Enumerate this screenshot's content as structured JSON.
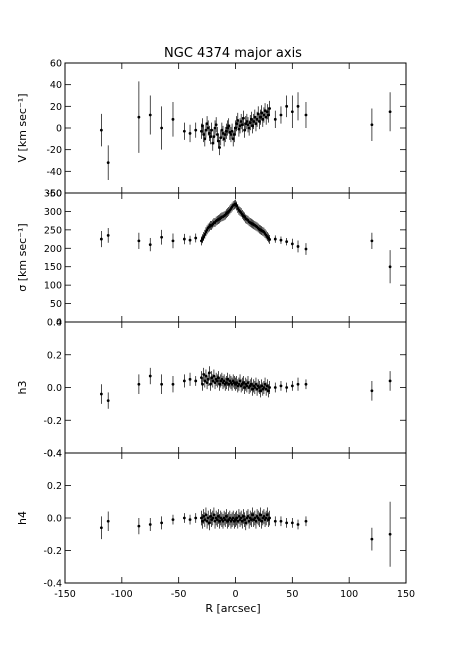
{
  "chart_data": {
    "type": "scatter",
    "title": "NGC 4374 major axis",
    "xlabel": "R [arcsec]",
    "xlim": [
      -150,
      150
    ],
    "xticks": [
      -150,
      -100,
      -50,
      0,
      50,
      100,
      150
    ],
    "panels": [
      {
        "ylabel": "V [km sec⁻¹]",
        "ylim": [
          -60,
          60
        ],
        "yticks": [
          -60,
          -40,
          -20,
          0,
          20,
          40,
          60
        ],
        "inner_x": [
          -30,
          -29,
          -28,
          -27,
          -26,
          -25,
          -24,
          -23,
          -22,
          -21,
          -20,
          -19,
          -18,
          -17,
          -16,
          -15,
          -14,
          -13,
          -12,
          -11,
          -10,
          -9,
          -8,
          -7,
          -6,
          -5,
          -4,
          -3,
          -2,
          -1,
          0,
          1,
          2,
          3,
          4,
          5,
          6,
          7,
          8,
          9,
          10,
          11,
          12,
          13,
          14,
          15,
          16,
          17,
          18,
          19,
          20,
          21,
          22,
          23,
          24,
          25,
          26,
          27,
          28,
          29,
          30
        ],
        "inner_y": [
          -3,
          2,
          -6,
          -10,
          -2,
          4,
          0,
          -5,
          -8,
          -2,
          -14,
          -8,
          0,
          3,
          -6,
          -12,
          -18,
          -9,
          -2,
          -5,
          -10,
          -6,
          -3,
          0,
          2,
          -4,
          -6,
          -3,
          -10,
          -6,
          0,
          4,
          7,
          -1,
          2,
          6,
          3,
          9,
          -2,
          4,
          6,
          3,
          0,
          5,
          8,
          2,
          6,
          10,
          4,
          8,
          13,
          6,
          10,
          14,
          8,
          12,
          16,
          10,
          15,
          12,
          18
        ],
        "inner_err": 7,
        "outer": [
          {
            "x": -118,
            "y": -2,
            "err": 15
          },
          {
            "x": -112,
            "y": -32,
            "err": 16
          },
          {
            "x": -85,
            "y": 10,
            "err": 33
          },
          {
            "x": -75,
            "y": 12,
            "err": 18
          },
          {
            "x": -65,
            "y": 0,
            "err": 20
          },
          {
            "x": -55,
            "y": 8,
            "err": 16
          },
          {
            "x": -45,
            "y": -3,
            "err": 8
          },
          {
            "x": -40,
            "y": -5,
            "err": 8
          },
          {
            "x": -35,
            "y": -2,
            "err": 7
          },
          {
            "x": 35,
            "y": 8,
            "err": 8
          },
          {
            "x": 40,
            "y": 12,
            "err": 8
          },
          {
            "x": 45,
            "y": 20,
            "err": 10
          },
          {
            "x": 50,
            "y": 15,
            "err": 15
          },
          {
            "x": 55,
            "y": 20,
            "err": 13
          },
          {
            "x": 62,
            "y": 12,
            "err": 12
          },
          {
            "x": 120,
            "y": 3,
            "err": 15
          },
          {
            "x": 136,
            "y": 15,
            "err": 18
          }
        ]
      },
      {
        "ylabel": "σ [km sec⁻¹]",
        "ylim": [
          0,
          350
        ],
        "yticks": [
          0,
          50,
          100,
          150,
          200,
          250,
          300,
          350
        ],
        "inner_x": [
          -30,
          -29,
          -28,
          -27,
          -26,
          -25,
          -24,
          -23,
          -22,
          -21,
          -20,
          -19,
          -18,
          -17,
          -16,
          -15,
          -14,
          -13,
          -12,
          -11,
          -10,
          -9,
          -8,
          -7,
          -6,
          -5,
          -4,
          -3,
          -2,
          -1,
          0,
          1,
          2,
          3,
          4,
          5,
          6,
          7,
          8,
          9,
          10,
          11,
          12,
          13,
          14,
          15,
          16,
          17,
          18,
          19,
          20,
          21,
          22,
          23,
          24,
          25,
          26,
          27,
          28,
          29,
          30
        ],
        "inner_y": [
          220,
          226,
          232,
          238,
          245,
          250,
          255,
          258,
          262,
          262,
          266,
          270,
          270,
          274,
          276,
          278,
          280,
          283,
          285,
          286,
          288,
          290,
          294,
          297,
          300,
          304,
          308,
          312,
          316,
          318,
          320,
          315,
          308,
          303,
          300,
          297,
          292,
          288,
          285,
          280,
          278,
          276,
          272,
          270,
          268,
          266,
          264,
          262,
          260,
          258,
          255,
          252,
          250,
          248,
          246,
          244,
          240,
          236,
          232,
          228,
          224
        ],
        "inner_err": 12,
        "outer": [
          {
            "x": -118,
            "y": 225,
            "err": 22
          },
          {
            "x": -112,
            "y": 235,
            "err": 20
          },
          {
            "x": -85,
            "y": 220,
            "err": 22
          },
          {
            "x": -75,
            "y": 210,
            "err": 18
          },
          {
            "x": -65,
            "y": 230,
            "err": 20
          },
          {
            "x": -55,
            "y": 220,
            "err": 20
          },
          {
            "x": -45,
            "y": 225,
            "err": 14
          },
          {
            "x": -40,
            "y": 222,
            "err": 12
          },
          {
            "x": -35,
            "y": 228,
            "err": 12
          },
          {
            "x": 35,
            "y": 225,
            "err": 10
          },
          {
            "x": 40,
            "y": 222,
            "err": 10
          },
          {
            "x": 45,
            "y": 218,
            "err": 10
          },
          {
            "x": 50,
            "y": 212,
            "err": 14
          },
          {
            "x": 55,
            "y": 205,
            "err": 16
          },
          {
            "x": 62,
            "y": 198,
            "err": 16
          },
          {
            "x": 120,
            "y": 220,
            "err": 22
          },
          {
            "x": 136,
            "y": 150,
            "err": 45
          }
        ]
      },
      {
        "ylabel": "h3",
        "ylim": [
          -0.4,
          0.4
        ],
        "yticks": [
          -0.4,
          -0.2,
          0.0,
          0.2,
          0.4
        ],
        "inner_x": [
          -30,
          -29,
          -28,
          -27,
          -26,
          -25,
          -24,
          -23,
          -22,
          -21,
          -20,
          -19,
          -18,
          -17,
          -16,
          -15,
          -14,
          -13,
          -12,
          -11,
          -10,
          -9,
          -8,
          -7,
          -6,
          -5,
          -4,
          -3,
          -2,
          -1,
          0,
          1,
          2,
          3,
          4,
          5,
          6,
          7,
          8,
          9,
          10,
          11,
          12,
          13,
          14,
          15,
          16,
          17,
          18,
          19,
          20,
          21,
          22,
          23,
          24,
          25,
          26,
          27,
          28,
          29,
          30
        ],
        "inner_y": [
          0.06,
          0.02,
          0.08,
          0.04,
          0.07,
          0.03,
          0.05,
          0.09,
          0.02,
          0.06,
          0.04,
          0.07,
          0.03,
          0.05,
          0.04,
          0.06,
          0.02,
          0.04,
          0.05,
          0.03,
          0.04,
          0.02,
          0.03,
          0.05,
          0.02,
          0.04,
          0.03,
          0.02,
          0.04,
          0.03,
          0.02,
          0.03,
          0.01,
          0.02,
          0.04,
          0.01,
          0.02,
          0.03,
          0.0,
          0.02,
          0.01,
          0.03,
          0.0,
          0.01,
          0.02,
          -0.01,
          0.01,
          0.0,
          0.02,
          -0.01,
          0.01,
          0.0,
          -0.02,
          0.01,
          -0.01,
          0.0,
          0.02,
          -0.01,
          0.01,
          -0.02,
          0.0
        ],
        "inner_err": 0.04,
        "outer": [
          {
            "x": -118,
            "y": -0.04,
            "err": 0.06
          },
          {
            "x": -112,
            "y": -0.08,
            "err": 0.05
          },
          {
            "x": -85,
            "y": 0.02,
            "err": 0.06
          },
          {
            "x": -75,
            "y": 0.07,
            "err": 0.05
          },
          {
            "x": -65,
            "y": 0.02,
            "err": 0.06
          },
          {
            "x": -55,
            "y": 0.02,
            "err": 0.05
          },
          {
            "x": -45,
            "y": 0.04,
            "err": 0.04
          },
          {
            "x": -40,
            "y": 0.05,
            "err": 0.04
          },
          {
            "x": -35,
            "y": 0.04,
            "err": 0.03
          },
          {
            "x": 35,
            "y": 0.0,
            "err": 0.03
          },
          {
            "x": 40,
            "y": 0.01,
            "err": 0.03
          },
          {
            "x": 45,
            "y": 0.0,
            "err": 0.03
          },
          {
            "x": 50,
            "y": 0.01,
            "err": 0.03
          },
          {
            "x": 55,
            "y": 0.02,
            "err": 0.04
          },
          {
            "x": 62,
            "y": 0.02,
            "err": 0.03
          },
          {
            "x": 120,
            "y": -0.02,
            "err": 0.06
          },
          {
            "x": 136,
            "y": 0.04,
            "err": 0.06
          }
        ]
      },
      {
        "ylabel": "h4",
        "ylim": [
          -0.4,
          0.4
        ],
        "yticks": [
          -0.4,
          -0.2,
          0.0,
          0.2,
          0.4
        ],
        "inner_x": [
          -30,
          -29,
          -28,
          -27,
          -26,
          -25,
          -24,
          -23,
          -22,
          -21,
          -20,
          -19,
          -18,
          -17,
          -16,
          -15,
          -14,
          -13,
          -12,
          -11,
          -10,
          -9,
          -8,
          -7,
          -6,
          -5,
          -4,
          -3,
          -2,
          -1,
          0,
          1,
          2,
          3,
          4,
          5,
          6,
          7,
          8,
          9,
          10,
          11,
          12,
          13,
          14,
          15,
          16,
          17,
          18,
          19,
          20,
          21,
          22,
          23,
          24,
          25,
          26,
          27,
          28,
          29,
          30
        ],
        "inner_y": [
          0.0,
          -0.02,
          0.01,
          -0.01,
          0.02,
          -0.02,
          0.0,
          -0.03,
          0.01,
          -0.01,
          0.0,
          0.02,
          -0.02,
          0.0,
          -0.01,
          0.01,
          -0.02,
          0.0,
          -0.01,
          -0.02,
          0.0,
          -0.01,
          0.01,
          -0.02,
          -0.01,
          0.0,
          -0.02,
          -0.01,
          0.0,
          -0.02,
          -0.01,
          0.0,
          -0.02,
          0.01,
          -0.01,
          0.0,
          -0.02,
          0.01,
          -0.01,
          -0.03,
          0.0,
          0.01,
          -0.02,
          0.0,
          -0.01,
          0.02,
          -0.01,
          0.0,
          -0.02,
          0.01,
          0.0,
          -0.01,
          0.02,
          -0.02,
          0.0,
          0.01,
          -0.01,
          0.0,
          0.02,
          -0.01,
          0.0
        ],
        "inner_err": 0.045,
        "outer": [
          {
            "x": -118,
            "y": -0.06,
            "err": 0.07
          },
          {
            "x": -112,
            "y": -0.02,
            "err": 0.06
          },
          {
            "x": -85,
            "y": -0.05,
            "err": 0.05
          },
          {
            "x": -75,
            "y": -0.04,
            "err": 0.04
          },
          {
            "x": -65,
            "y": -0.03,
            "err": 0.04
          },
          {
            "x": -55,
            "y": -0.01,
            "err": 0.03
          },
          {
            "x": -45,
            "y": 0.0,
            "err": 0.03
          },
          {
            "x": -40,
            "y": -0.01,
            "err": 0.03
          },
          {
            "x": -35,
            "y": 0.0,
            "err": 0.03
          },
          {
            "x": 35,
            "y": -0.02,
            "err": 0.03
          },
          {
            "x": 40,
            "y": -0.02,
            "err": 0.03
          },
          {
            "x": 45,
            "y": -0.03,
            "err": 0.03
          },
          {
            "x": 50,
            "y": -0.03,
            "err": 0.03
          },
          {
            "x": 55,
            "y": -0.04,
            "err": 0.03
          },
          {
            "x": 62,
            "y": -0.02,
            "err": 0.03
          },
          {
            "x": 120,
            "y": -0.13,
            "err": 0.07
          },
          {
            "x": 136,
            "y": -0.1,
            "err": 0.2
          }
        ]
      }
    ]
  }
}
